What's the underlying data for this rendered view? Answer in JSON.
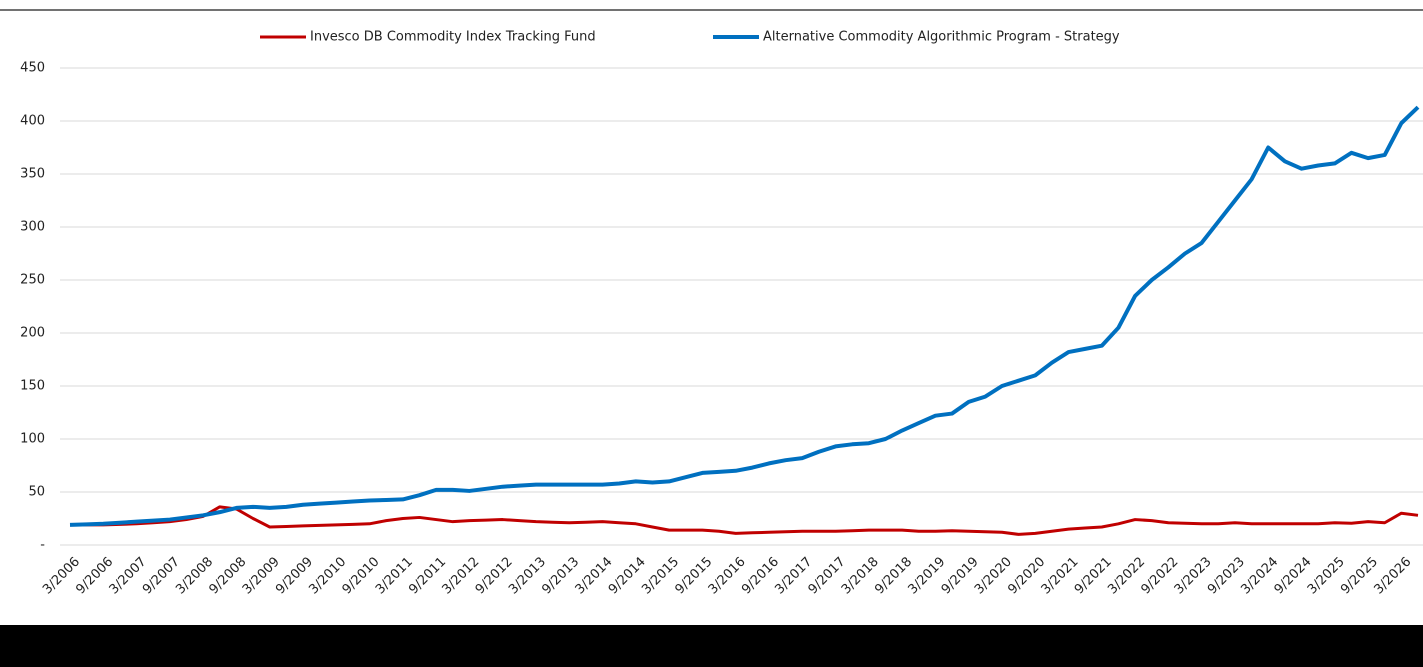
{
  "chart_data": {
    "type": "line",
    "categories": [
      "3/2006",
      null,
      "9/2006",
      null,
      "3/2007",
      null,
      "9/2007",
      null,
      "3/2008",
      null,
      "9/2008",
      null,
      "3/2009",
      null,
      "9/2009",
      null,
      "3/2010",
      null,
      "9/2010",
      null,
      "3/2011",
      null,
      "9/2011",
      null,
      "3/2012",
      null,
      "9/2012",
      null,
      "3/2013",
      null,
      "9/2013",
      null,
      "3/2014",
      null,
      "9/2014",
      null,
      "3/2015",
      null,
      "9/2015",
      null,
      "3/2016",
      null,
      "9/2016",
      null,
      "3/2017",
      null,
      "9/2017",
      null,
      "3/2018",
      null,
      "9/2018",
      null,
      "3/2019",
      null,
      "9/2019",
      null,
      "3/2020",
      null,
      "9/2020",
      null,
      "3/2021",
      null,
      "9/2021",
      null,
      "3/2022",
      null,
      "9/2022",
      null,
      "3/2023",
      null,
      "9/2023",
      null,
      "3/2024",
      null,
      "9/2024",
      null,
      "3/2025",
      null,
      "9/2025",
      null,
      "3/2026",
      null
    ],
    "series": [
      {
        "name": "Invesco DB Commodity Index Tracking Fund",
        "color": "#c00000",
        "values": [
          19,
          19,
          19,
          19.5,
          20,
          21,
          22,
          24,
          27,
          36,
          34,
          25,
          17,
          17.5,
          18,
          18.5,
          19,
          19.5,
          20,
          23,
          25,
          26,
          24,
          22,
          23,
          23.5,
          24,
          23,
          22,
          21.5,
          21,
          21.5,
          22,
          21,
          20,
          17,
          14,
          14,
          14,
          13,
          11,
          11.5,
          12,
          12.5,
          13,
          13,
          13,
          13.5,
          14,
          14,
          14,
          13,
          13,
          13.5,
          13,
          12.5,
          12,
          10,
          11,
          13,
          15,
          16,
          17,
          20,
          24,
          23,
          21,
          20.5,
          20,
          20,
          21,
          20,
          20,
          20,
          20,
          20,
          21,
          20.5,
          22,
          21,
          30,
          28
        ]
      },
      {
        "name": "Alternative Commodity Algorithmic Program - Strategy",
        "color": "#0070c0",
        "values": [
          19,
          19.5,
          20,
          21,
          22,
          23,
          24,
          26,
          28,
          31,
          35,
          36,
          35,
          36,
          38,
          39,
          40,
          41,
          42,
          42.5,
          43,
          47,
          52,
          52,
          51,
          53,
          55,
          56,
          57,
          57,
          57,
          57,
          57,
          58,
          60,
          59,
          60,
          64,
          68,
          69,
          70,
          73,
          77,
          80,
          82,
          88,
          93,
          95,
          96,
          100,
          108,
          115,
          122,
          124,
          135,
          140,
          150,
          155,
          160,
          172,
          182,
          185,
          188,
          205,
          235,
          250,
          262,
          275,
          285,
          305,
          325,
          345,
          375,
          362,
          355,
          358,
          360,
          370,
          365,
          368,
          398,
          413
        ]
      }
    ],
    "ylim": [
      0,
      450
    ],
    "yticks": [
      {
        "value": 0,
        "label": "-"
      },
      50,
      100,
      150,
      200,
      250,
      300,
      350,
      400,
      450
    ],
    "grid": true,
    "legend": "top"
  }
}
